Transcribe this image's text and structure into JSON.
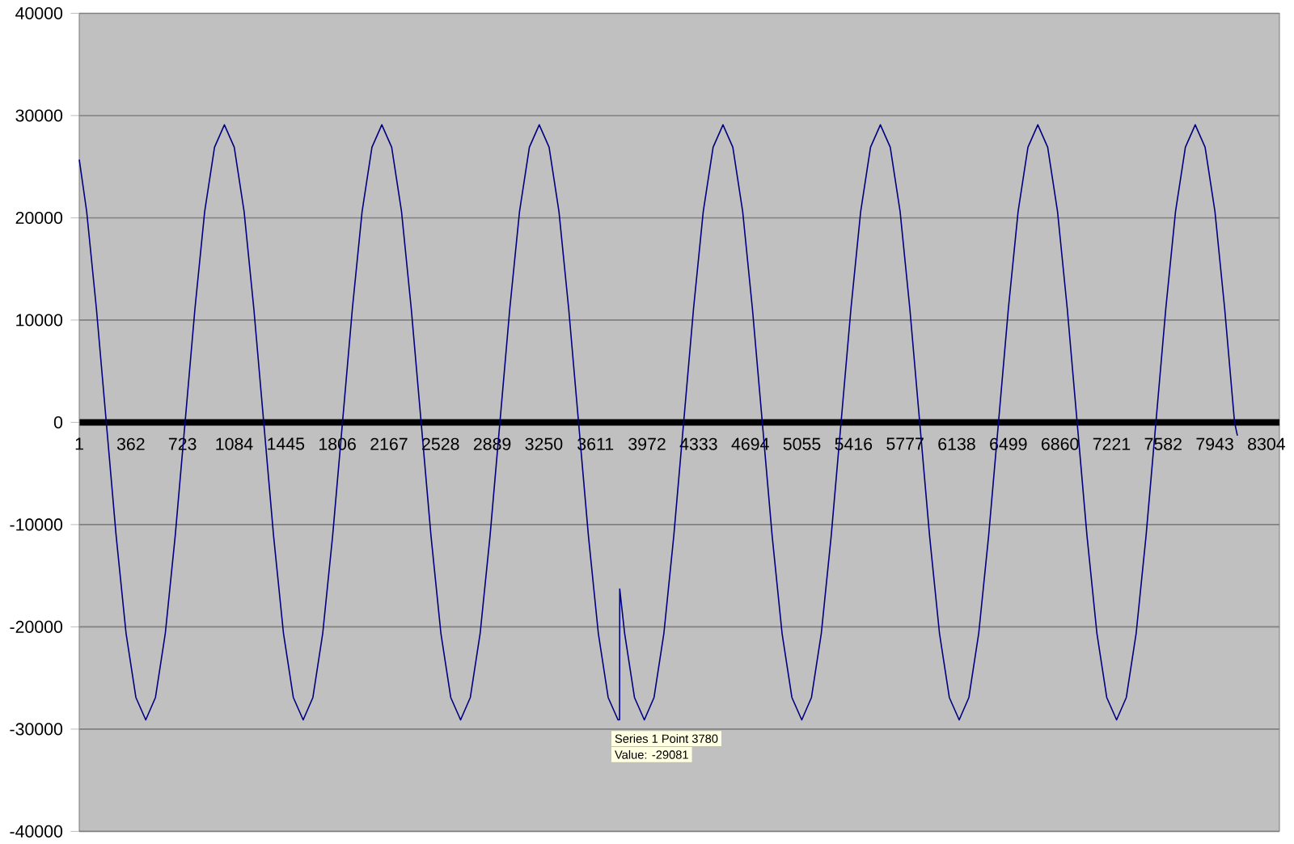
{
  "chart_data": {
    "type": "line",
    "x": [
      1,
      53,
      121,
      190,
      259,
      328,
      397,
      466,
      534,
      603,
      672,
      741,
      810,
      878,
      947,
      1016,
      1085,
      1154,
      1222,
      1291,
      1360,
      1429,
      1498,
      1567,
      1635,
      1704,
      1773,
      1842,
      1911,
      1979,
      2048,
      2117,
      2186,
      2255,
      2323,
      2392,
      2461,
      2530,
      2599,
      2668,
      2736,
      2805,
      2874,
      2943,
      3012,
      3080,
      3149,
      3218,
      3287,
      3356,
      3424,
      3493,
      3562,
      3631,
      3700,
      3769,
      3780,
      3781,
      3815,
      3884,
      3953,
      4021,
      4090,
      4159,
      4228,
      4297,
      4365,
      4434,
      4503,
      4572,
      4641,
      4709,
      4778,
      4847,
      4916,
      4985,
      5054,
      5122,
      5191,
      5260,
      5329,
      5398,
      5466,
      5535,
      5604,
      5673,
      5742,
      5810,
      5879,
      5948,
      6017,
      6086,
      6155,
      6223,
      6292,
      6361,
      6430,
      6499,
      6567,
      6636,
      6705,
      6774,
      6843,
      6911,
      6980,
      7049,
      7118,
      7187,
      7256,
      7324,
      7393,
      7462,
      7531,
      7600,
      7668,
      7737,
      7806,
      7875,
      7944,
      8012,
      8081,
      8101
    ],
    "values": [
      25700,
      20600,
      11100,
      0,
      -11100,
      -20600,
      -26900,
      -29100,
      -26900,
      -20600,
      -11100,
      0,
      11100,
      20600,
      26900,
      29100,
      26900,
      20600,
      11100,
      0,
      -11100,
      -20600,
      -26900,
      -29100,
      -26900,
      -20600,
      -11100,
      0,
      11100,
      20600,
      26900,
      29100,
      26900,
      20600,
      11100,
      0,
      -11100,
      -20600,
      -26900,
      -29100,
      -26900,
      -20600,
      -11100,
      0,
      11100,
      20600,
      26900,
      29100,
      26900,
      20600,
      11100,
      0,
      -11100,
      -20600,
      -26900,
      -29100,
      -29081,
      -16300,
      -20600,
      -26900,
      -29100,
      -26900,
      -20600,
      -11100,
      0,
      11100,
      20600,
      26900,
      29100,
      26900,
      20600,
      11100,
      0,
      -11100,
      -20600,
      -26900,
      -29100,
      -26900,
      -20600,
      -11100,
      0,
      11100,
      20600,
      26900,
      29100,
      26900,
      20600,
      11100,
      0,
      -11100,
      -20600,
      -26900,
      -29100,
      -26900,
      -20600,
      -11100,
      0,
      11100,
      20600,
      26900,
      29100,
      26900,
      20600,
      11100,
      0,
      -11100,
      -20600,
      -26900,
      -29100,
      -26900,
      -20600,
      -11100,
      0,
      11100,
      20600,
      26900,
      29100,
      26900,
      20600,
      11100,
      0,
      -1300
    ],
    "color": "#000080",
    "xlim": [
      1,
      8395
    ],
    "xticks": [
      1,
      362,
      723,
      1084,
      1445,
      1806,
      2167,
      2528,
      2889,
      3250,
      3611,
      3972,
      4333,
      4694,
      5055,
      5416,
      5777,
      6138,
      6499,
      6860,
      7221,
      7582,
      7943,
      8304
    ],
    "ylim": [
      -40000,
      40000
    ],
    "yticks": [
      -40000,
      -30000,
      -20000,
      -10000,
      0,
      10000,
      20000,
      30000,
      40000
    ],
    "grid": "y",
    "annotations": [
      {
        "text": "Series 1 Point 3780",
        "x": 3780,
        "y": -29081
      },
      "Value: -29081"
    ]
  }
}
